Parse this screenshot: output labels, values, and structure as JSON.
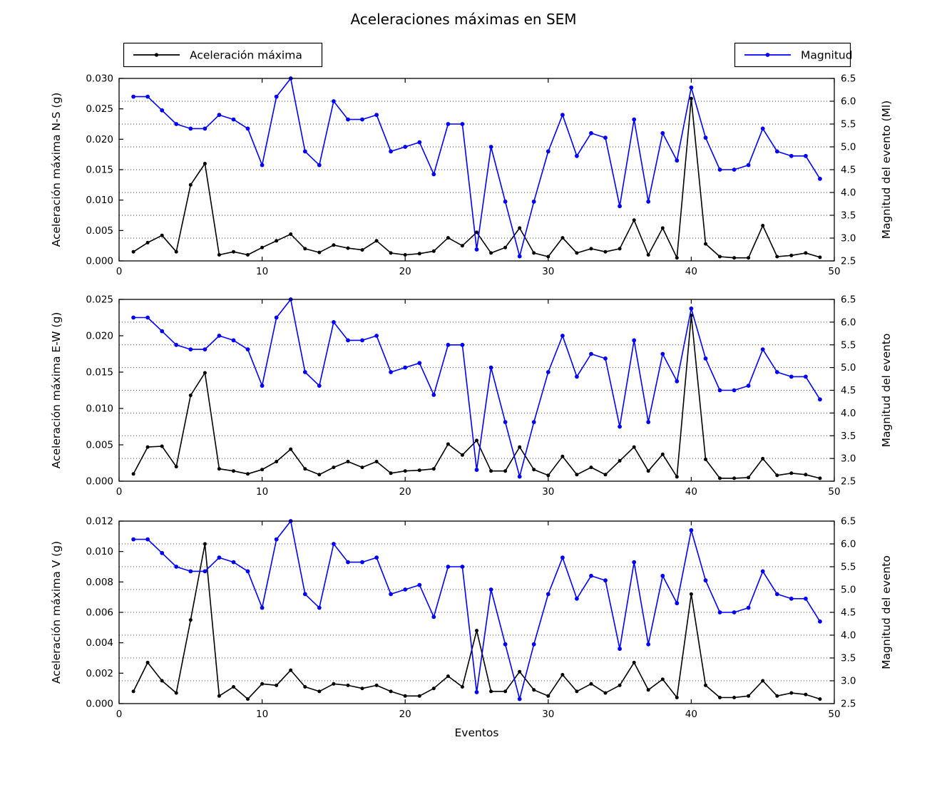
{
  "title": "Aceleraciones máximas en SEM",
  "legend_left": {
    "label": "Aceleración máxima",
    "color": "#000000"
  },
  "legend_right": {
    "label": "Magnitud",
    "color": "#0000ff"
  },
  "chart_data": [
    {
      "type": "line",
      "subplot": "N-S",
      "xlabel": "",
      "xlim": [
        0,
        50
      ],
      "xticks": [
        "0",
        "10",
        "20",
        "30",
        "40",
        "50"
      ],
      "ylabel_left": "Aceleración máxima N-S (g)",
      "ylim_left": [
        0.0,
        0.03
      ],
      "yticks_left": [
        "0.000",
        "0.005",
        "0.010",
        "0.015",
        "0.020",
        "0.025",
        "0.030"
      ],
      "ylabel_right": "Magnitud del evento (Ml)",
      "ylim_right": [
        2.5,
        6.5
      ],
      "yticks_right": [
        "2.5",
        "3.0",
        "3.5",
        "4.0",
        "4.5",
        "5.0",
        "5.5",
        "6.0",
        "6.5"
      ],
      "grid": "horizontal dotted at right-axis ticks",
      "x": [
        1,
        2,
        3,
        4,
        5,
        6,
        7,
        8,
        9,
        10,
        11,
        12,
        13,
        14,
        15,
        16,
        17,
        18,
        19,
        20,
        21,
        22,
        23,
        24,
        25,
        26,
        27,
        28,
        29,
        30,
        31,
        32,
        33,
        34,
        35,
        36,
        37,
        38,
        39,
        40,
        41,
        42,
        43,
        44,
        45,
        46,
        47,
        48,
        49
      ],
      "series": [
        {
          "name": "Aceleración máxima",
          "axis": "left",
          "color": "#000000",
          "values": [
            0.0015,
            0.003,
            0.0042,
            0.0015,
            0.0125,
            0.016,
            0.001,
            0.0015,
            0.001,
            0.0022,
            0.0033,
            0.0044,
            0.002,
            0.0014,
            0.0026,
            0.0021,
            0.0018,
            0.0033,
            0.0013,
            0.001,
            0.0012,
            0.0016,
            0.0038,
            0.0025,
            0.0047,
            0.0013,
            0.0022,
            0.0054,
            0.0013,
            0.0007,
            0.0038,
            0.0013,
            0.002,
            0.0015,
            0.002,
            0.0067,
            0.001,
            0.0054,
            0.0005,
            0.0267,
            0.0028,
            0.0007,
            0.0005,
            0.0005,
            0.0058,
            0.0007,
            0.0009,
            0.0013,
            0.0006
          ]
        },
        {
          "name": "Magnitud",
          "axis": "right",
          "color": "#0000ff",
          "values": [
            6.1,
            6.1,
            5.8,
            5.5,
            5.4,
            5.4,
            5.7,
            5.6,
            5.4,
            4.6,
            6.1,
            6.5,
            4.9,
            4.6,
            6.0,
            5.6,
            5.6,
            5.7,
            4.9,
            5.0,
            5.1,
            4.4,
            5.5,
            5.5,
            2.75,
            5.0,
            3.8,
            2.6,
            3.8,
            4.9,
            5.7,
            4.8,
            5.3,
            5.2,
            3.7,
            5.6,
            3.8,
            5.3,
            4.7,
            6.3,
            5.2,
            4.5,
            4.5,
            4.6,
            5.4,
            4.9,
            4.8,
            4.8,
            4.3
          ]
        }
      ]
    },
    {
      "type": "line",
      "subplot": "E-W",
      "xlabel": "",
      "xlim": [
        0,
        50
      ],
      "xticks": [
        "0",
        "10",
        "20",
        "30",
        "40",
        "50"
      ],
      "ylabel_left": "Aceleración máxima E-W (g)",
      "ylim_left": [
        0.0,
        0.025
      ],
      "yticks_left": [
        "0.000",
        "0.005",
        "0.010",
        "0.015",
        "0.020",
        "0.025"
      ],
      "ylabel_right": "Magnitud del evento",
      "ylim_right": [
        2.5,
        6.5
      ],
      "yticks_right": [
        "2.5",
        "3.0",
        "3.5",
        "4.0",
        "4.5",
        "5.0",
        "5.5",
        "6.0",
        "6.5"
      ],
      "grid": "horizontal dotted at right-axis ticks",
      "x": [
        1,
        2,
        3,
        4,
        5,
        6,
        7,
        8,
        9,
        10,
        11,
        12,
        13,
        14,
        15,
        16,
        17,
        18,
        19,
        20,
        21,
        22,
        23,
        24,
        25,
        26,
        27,
        28,
        29,
        30,
        31,
        32,
        33,
        34,
        35,
        36,
        37,
        38,
        39,
        40,
        41,
        42,
        43,
        44,
        45,
        46,
        47,
        48,
        49
      ],
      "series": [
        {
          "name": "Aceleración máxima",
          "axis": "left",
          "color": "#000000",
          "values": [
            0.001,
            0.0047,
            0.0048,
            0.002,
            0.0118,
            0.0149,
            0.0017,
            0.0014,
            0.001,
            0.0016,
            0.0027,
            0.0044,
            0.0017,
            0.0009,
            0.0019,
            0.0027,
            0.0019,
            0.0027,
            0.0011,
            0.0014,
            0.0015,
            0.0017,
            0.0051,
            0.0036,
            0.0056,
            0.0014,
            0.0014,
            0.0047,
            0.0016,
            0.0008,
            0.0034,
            0.0009,
            0.0019,
            0.0009,
            0.0028,
            0.0047,
            0.0014,
            0.0037,
            0.0006,
            0.0228,
            0.003,
            0.0004,
            0.0004,
            0.0005,
            0.0031,
            0.0008,
            0.0011,
            0.0009,
            0.0004
          ]
        },
        {
          "name": "Magnitud",
          "axis": "right",
          "color": "#0000ff",
          "values": [
            6.1,
            6.1,
            5.8,
            5.5,
            5.4,
            5.4,
            5.7,
            5.6,
            5.4,
            4.6,
            6.1,
            6.5,
            4.9,
            4.6,
            6.0,
            5.6,
            5.6,
            5.7,
            4.9,
            5.0,
            5.1,
            4.4,
            5.5,
            5.5,
            2.75,
            5.0,
            3.8,
            2.6,
            3.8,
            4.9,
            5.7,
            4.8,
            5.3,
            5.2,
            3.7,
            5.6,
            3.8,
            5.3,
            4.7,
            6.3,
            5.2,
            4.5,
            4.5,
            4.6,
            5.4,
            4.9,
            4.8,
            4.8,
            4.3
          ]
        }
      ]
    },
    {
      "type": "line",
      "subplot": "V",
      "xlabel": "Eventos",
      "xlim": [
        0,
        50
      ],
      "xticks": [
        "0",
        "10",
        "20",
        "30",
        "40",
        "50"
      ],
      "ylabel_left": "Aceleración máxima V (g)",
      "ylim_left": [
        0.0,
        0.012
      ],
      "yticks_left": [
        "0.000",
        "0.002",
        "0.004",
        "0.006",
        "0.008",
        "0.010",
        "0.012"
      ],
      "ylabel_right": "Magnitud del evento",
      "ylim_right": [
        2.5,
        6.5
      ],
      "yticks_right": [
        "2.5",
        "3.0",
        "3.5",
        "4.0",
        "4.5",
        "5.0",
        "5.5",
        "6.0",
        "6.5"
      ],
      "grid": "horizontal dotted at right-axis ticks",
      "x": [
        1,
        2,
        3,
        4,
        5,
        6,
        7,
        8,
        9,
        10,
        11,
        12,
        13,
        14,
        15,
        16,
        17,
        18,
        19,
        20,
        21,
        22,
        23,
        24,
        25,
        26,
        27,
        28,
        29,
        30,
        31,
        32,
        33,
        34,
        35,
        36,
        37,
        38,
        39,
        40,
        41,
        42,
        43,
        44,
        45,
        46,
        47,
        48,
        49
      ],
      "series": [
        {
          "name": "Aceleración máxima",
          "axis": "left",
          "color": "#000000",
          "values": [
            0.0008,
            0.0027,
            0.0015,
            0.0007,
            0.0055,
            0.0105,
            0.0005,
            0.0011,
            0.0003,
            0.0013,
            0.0012,
            0.0022,
            0.0011,
            0.0008,
            0.0013,
            0.0012,
            0.001,
            0.0012,
            0.0008,
            0.0005,
            0.0005,
            0.001,
            0.0018,
            0.0011,
            0.0048,
            0.0008,
            0.0008,
            0.0021,
            0.0009,
            0.0005,
            0.0019,
            0.0008,
            0.0013,
            0.0007,
            0.0012,
            0.0027,
            0.0009,
            0.0016,
            0.0004,
            0.0072,
            0.0012,
            0.0004,
            0.0004,
            0.0005,
            0.0015,
            0.0005,
            0.0007,
            0.0006,
            0.0003
          ]
        },
        {
          "name": "Magnitud",
          "axis": "right",
          "color": "#0000ff",
          "values": [
            6.1,
            6.1,
            5.8,
            5.5,
            5.4,
            5.4,
            5.7,
            5.6,
            5.4,
            4.6,
            6.1,
            6.5,
            4.9,
            4.6,
            6.0,
            5.6,
            5.6,
            5.7,
            4.9,
            5.0,
            5.1,
            4.4,
            5.5,
            5.5,
            2.75,
            5.0,
            3.8,
            2.6,
            3.8,
            4.9,
            5.7,
            4.8,
            5.3,
            5.2,
            3.7,
            5.6,
            3.8,
            5.3,
            4.7,
            6.3,
            5.2,
            4.5,
            4.5,
            4.6,
            5.4,
            4.9,
            4.8,
            4.8,
            4.3
          ]
        }
      ]
    }
  ]
}
